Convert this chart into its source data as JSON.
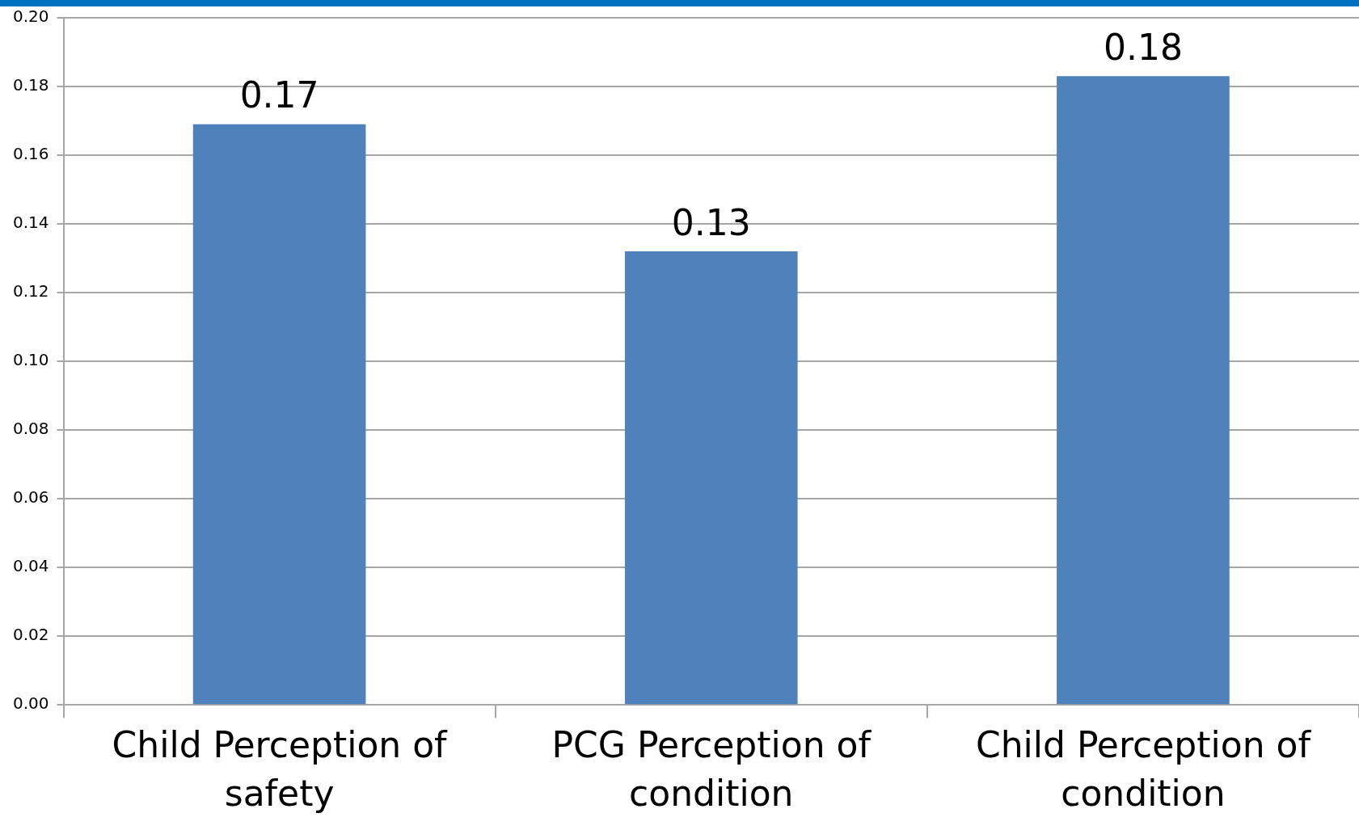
{
  "chart_data": {
    "type": "bar",
    "categories": [
      "Child Perception of safety",
      "PCG Perception of condition",
      "Child Perception of condition"
    ],
    "values": [
      0.169,
      0.132,
      0.183
    ],
    "value_labels": [
      "0.17",
      "0.13",
      "0.18"
    ],
    "color": "#4f81bd",
    "ylim": [
      0,
      0.2
    ],
    "yticks": [
      {
        "value": 0,
        "label": "0.00"
      },
      {
        "value": 0.02,
        "label": "0.02"
      },
      {
        "value": 0.04,
        "label": "0.04"
      },
      {
        "value": 0.06,
        "label": "0.06"
      },
      {
        "value": 0.08,
        "label": "0.08"
      },
      {
        "value": 0.1,
        "label": "0.10"
      },
      {
        "value": 0.12,
        "label": "0.12"
      },
      {
        "value": 0.14,
        "label": "0.14"
      },
      {
        "value": 0.16,
        "label": "0.16"
      },
      {
        "value": 0.18,
        "label": "0.18"
      },
      {
        "value": 0.2,
        "label": "0.20"
      }
    ],
    "grid": "y",
    "legend": false
  }
}
